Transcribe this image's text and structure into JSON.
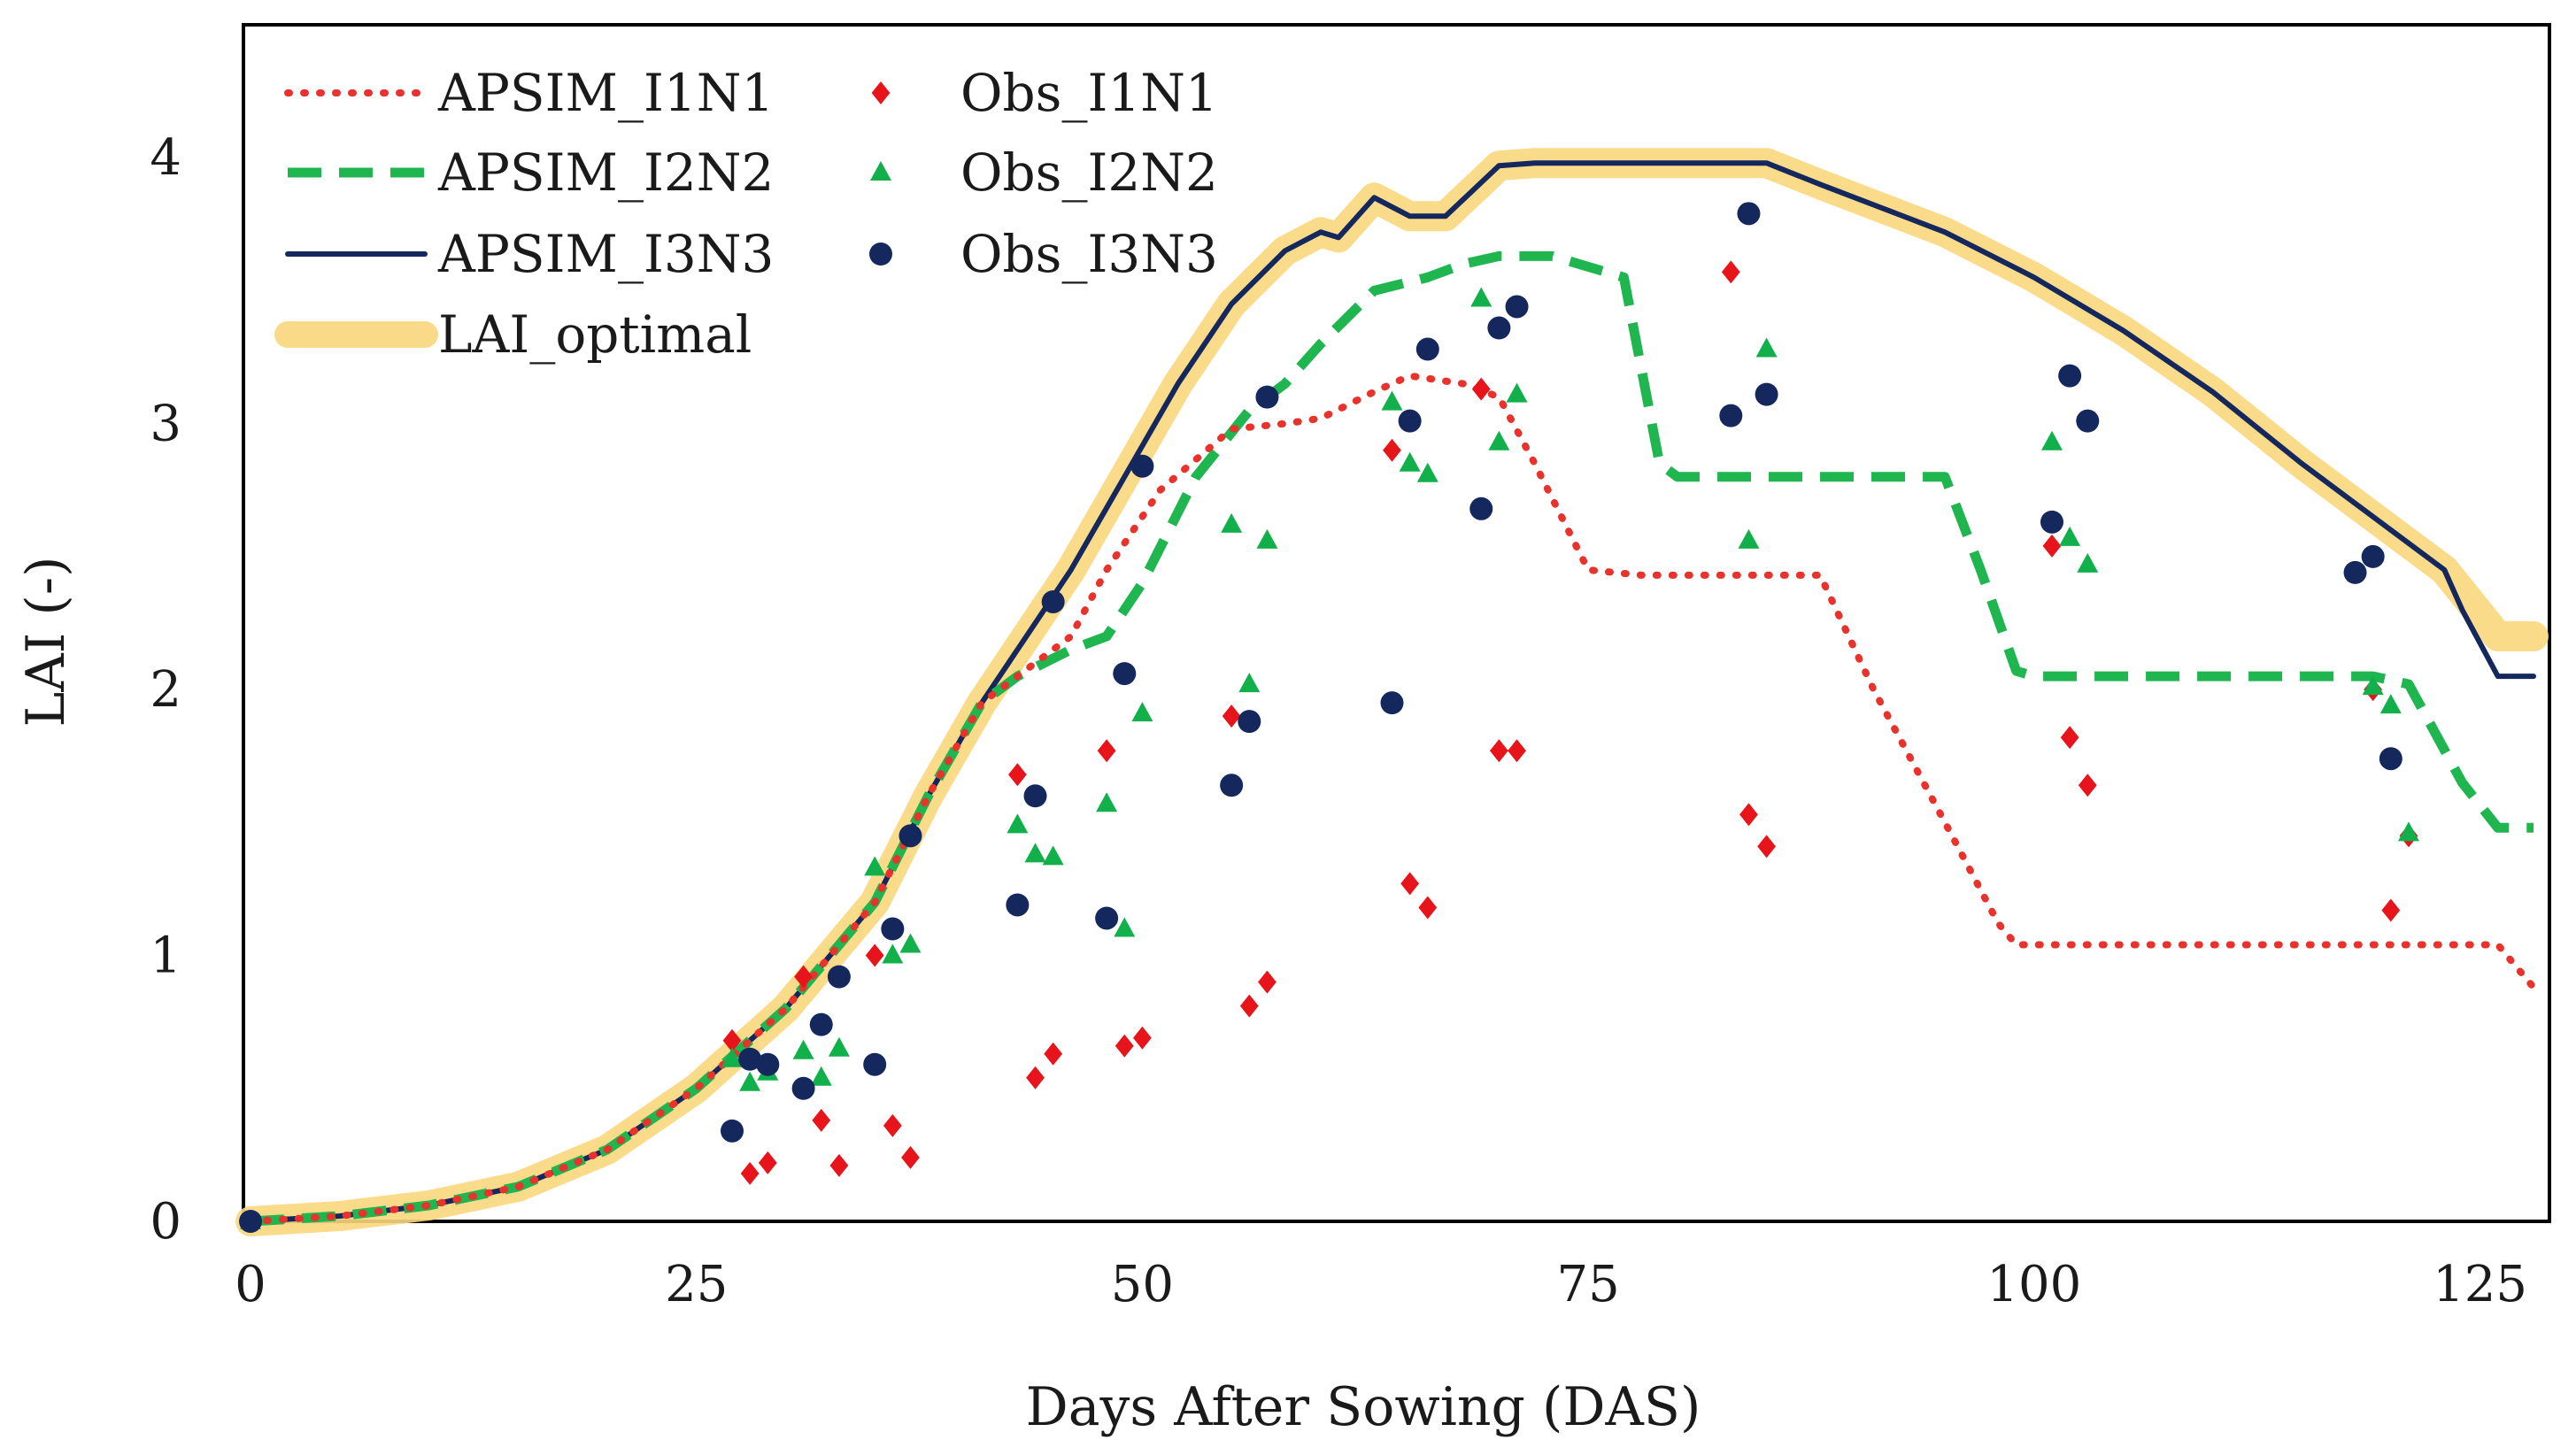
{
  "chart_data": {
    "type": "line",
    "title": "",
    "xlabel": "Days After Sowing (DAS)",
    "ylabel": "LAI (-)",
    "xlim": [
      0,
      128
    ],
    "ylim": [
      0,
      4.5
    ],
    "xticks": [
      0,
      25,
      50,
      75,
      100,
      125
    ],
    "yticks": [
      0,
      1,
      2,
      3,
      4
    ],
    "grid": false,
    "legend_position": "top-left",
    "series": [
      {
        "name": "APSIM_I1N1",
        "style": "dotted",
        "color": "#e8322b",
        "points": [
          [
            0,
            0
          ],
          [
            5,
            0.02
          ],
          [
            10,
            0.06
          ],
          [
            15,
            0.13
          ],
          [
            20,
            0.27
          ],
          [
            25,
            0.5
          ],
          [
            30,
            0.8
          ],
          [
            35,
            1.2
          ],
          [
            38,
            1.6
          ],
          [
            41,
            1.95
          ],
          [
            43,
            2.05
          ],
          [
            46,
            2.2
          ],
          [
            48,
            2.45
          ],
          [
            51,
            2.75
          ],
          [
            55,
            2.98
          ],
          [
            58,
            3.0
          ],
          [
            60,
            3.02
          ],
          [
            63,
            3.12
          ],
          [
            65,
            3.18
          ],
          [
            68,
            3.15
          ],
          [
            70,
            3.1
          ],
          [
            72,
            2.85
          ],
          [
            75,
            2.45
          ],
          [
            78,
            2.43
          ],
          [
            88,
            2.43
          ],
          [
            91,
            2.0
          ],
          [
            95,
            1.5
          ],
          [
            98,
            1.12
          ],
          [
            99,
            1.04
          ],
          [
            126,
            1.04
          ],
          [
            128,
            0.88
          ]
        ]
      },
      {
        "name": "APSIM_I2N2",
        "style": "dashed",
        "color": "#1fb54f",
        "points": [
          [
            0,
            0
          ],
          [
            5,
            0.02
          ],
          [
            10,
            0.06
          ],
          [
            15,
            0.13
          ],
          [
            20,
            0.27
          ],
          [
            25,
            0.5
          ],
          [
            30,
            0.8
          ],
          [
            35,
            1.2
          ],
          [
            38,
            1.6
          ],
          [
            41,
            1.95
          ],
          [
            43,
            2.05
          ],
          [
            46,
            2.15
          ],
          [
            48,
            2.2
          ],
          [
            50,
            2.4
          ],
          [
            53,
            2.8
          ],
          [
            56,
            3.05
          ],
          [
            58,
            3.15
          ],
          [
            60,
            3.3
          ],
          [
            63,
            3.5
          ],
          [
            66,
            3.55
          ],
          [
            68,
            3.6
          ],
          [
            70,
            3.63
          ],
          [
            73,
            3.63
          ],
          [
            77,
            3.55
          ],
          [
            79,
            2.85
          ],
          [
            80,
            2.8
          ],
          [
            95,
            2.8
          ],
          [
            97,
            2.45
          ],
          [
            99,
            2.07
          ],
          [
            100,
            2.05
          ],
          [
            119,
            2.05
          ],
          [
            121,
            2.02
          ],
          [
            124,
            1.65
          ],
          [
            126,
            1.48
          ],
          [
            128,
            1.48
          ]
        ]
      },
      {
        "name": "APSIM_I3N3",
        "style": "solid",
        "color": "#14285e",
        "points": [
          [
            0,
            0
          ],
          [
            5,
            0.02
          ],
          [
            10,
            0.06
          ],
          [
            15,
            0.13
          ],
          [
            20,
            0.27
          ],
          [
            25,
            0.5
          ],
          [
            30,
            0.8
          ],
          [
            35,
            1.2
          ],
          [
            38,
            1.6
          ],
          [
            41,
            1.95
          ],
          [
            43,
            2.15
          ],
          [
            46,
            2.45
          ],
          [
            49,
            2.8
          ],
          [
            52,
            3.15
          ],
          [
            55,
            3.45
          ],
          [
            58,
            3.65
          ],
          [
            60,
            3.72
          ],
          [
            61,
            3.7
          ],
          [
            63,
            3.85
          ],
          [
            65,
            3.78
          ],
          [
            67,
            3.78
          ],
          [
            70,
            3.97
          ],
          [
            72,
            3.98
          ],
          [
            85,
            3.98
          ],
          [
            88,
            3.9
          ],
          [
            95,
            3.72
          ],
          [
            100,
            3.55
          ],
          [
            105,
            3.35
          ],
          [
            110,
            3.12
          ],
          [
            115,
            2.85
          ],
          [
            120,
            2.6
          ],
          [
            123,
            2.45
          ],
          [
            124,
            2.3
          ],
          [
            126,
            2.05
          ],
          [
            128,
            2.05
          ]
        ]
      },
      {
        "name": "LAI_optimal",
        "style": "thick",
        "color": "#f8d77d",
        "points": [
          [
            0,
            0
          ],
          [
            5,
            0.02
          ],
          [
            10,
            0.06
          ],
          [
            15,
            0.13
          ],
          [
            20,
            0.27
          ],
          [
            25,
            0.5
          ],
          [
            30,
            0.8
          ],
          [
            35,
            1.2
          ],
          [
            38,
            1.6
          ],
          [
            41,
            1.95
          ],
          [
            43,
            2.15
          ],
          [
            46,
            2.45
          ],
          [
            49,
            2.8
          ],
          [
            52,
            3.15
          ],
          [
            55,
            3.45
          ],
          [
            58,
            3.65
          ],
          [
            60,
            3.72
          ],
          [
            61,
            3.7
          ],
          [
            63,
            3.85
          ],
          [
            65,
            3.78
          ],
          [
            67,
            3.78
          ],
          [
            70,
            3.97
          ],
          [
            72,
            3.98
          ],
          [
            85,
            3.98
          ],
          [
            88,
            3.9
          ],
          [
            95,
            3.72
          ],
          [
            100,
            3.55
          ],
          [
            105,
            3.35
          ],
          [
            110,
            3.12
          ],
          [
            115,
            2.85
          ],
          [
            120,
            2.6
          ],
          [
            123,
            2.45
          ],
          [
            126,
            2.2
          ],
          [
            128,
            2.2
          ]
        ]
      },
      {
        "name": "Obs_I1N1",
        "style": "marker-diamond",
        "color": "#e8141c",
        "points": [
          [
            0,
            0
          ],
          [
            27,
            0.68
          ],
          [
            28,
            0.18
          ],
          [
            29,
            0.22
          ],
          [
            31,
            0.92
          ],
          [
            32,
            0.38
          ],
          [
            33,
            0.21
          ],
          [
            35,
            1.0
          ],
          [
            36,
            0.36
          ],
          [
            37,
            0.24
          ],
          [
            43,
            1.68
          ],
          [
            44,
            0.54
          ],
          [
            45,
            0.63
          ],
          [
            48,
            1.77
          ],
          [
            49,
            0.66
          ],
          [
            50,
            0.69
          ],
          [
            55,
            1.9
          ],
          [
            56,
            0.81
          ],
          [
            57,
            0.9
          ],
          [
            64,
            2.9
          ],
          [
            65,
            1.27
          ],
          [
            66,
            1.18
          ],
          [
            69,
            3.13
          ],
          [
            70,
            1.77
          ],
          [
            71,
            1.77
          ],
          [
            83,
            3.57
          ],
          [
            84,
            1.53
          ],
          [
            85,
            1.41
          ],
          [
            101,
            2.54
          ],
          [
            102,
            1.82
          ],
          [
            103,
            1.64
          ],
          [
            119,
            2.0
          ],
          [
            120,
            1.17
          ],
          [
            121,
            1.45
          ]
        ]
      },
      {
        "name": "Obs_I2N2",
        "style": "marker-triangle",
        "color": "#12b04b",
        "points": [
          [
            0,
            0
          ],
          [
            27,
            0.61
          ],
          [
            28,
            0.52
          ],
          [
            29,
            0.56
          ],
          [
            31,
            0.64
          ],
          [
            32,
            0.54
          ],
          [
            33,
            0.65
          ],
          [
            35,
            1.33
          ],
          [
            36,
            1.0
          ],
          [
            37,
            1.04
          ],
          [
            43,
            1.49
          ],
          [
            44,
            1.38
          ],
          [
            45,
            1.37
          ],
          [
            48,
            1.57
          ],
          [
            49,
            1.1
          ],
          [
            50,
            1.91
          ],
          [
            55,
            2.62
          ],
          [
            56,
            2.02
          ],
          [
            57,
            2.56
          ],
          [
            64,
            3.08
          ],
          [
            65,
            2.85
          ],
          [
            66,
            2.81
          ],
          [
            69,
            3.47
          ],
          [
            70,
            2.93
          ],
          [
            71,
            3.11
          ],
          [
            84,
            2.56
          ],
          [
            85,
            3.28
          ],
          [
            101,
            2.93
          ],
          [
            102,
            2.57
          ],
          [
            103,
            2.47
          ],
          [
            119,
            2.01
          ],
          [
            120,
            1.94
          ],
          [
            121,
            1.46
          ]
        ]
      },
      {
        "name": "Obs_I3N3",
        "style": "marker-circle",
        "color": "#14285e",
        "points": [
          [
            0,
            0
          ],
          [
            27,
            0.34
          ],
          [
            28,
            0.61
          ],
          [
            29,
            0.59
          ],
          [
            31,
            0.5
          ],
          [
            32,
            0.74
          ],
          [
            33,
            0.92
          ],
          [
            35,
            0.59
          ],
          [
            36,
            1.1
          ],
          [
            37,
            1.45
          ],
          [
            43,
            1.19
          ],
          [
            44,
            1.6
          ],
          [
            45,
            2.33
          ],
          [
            48,
            1.14
          ],
          [
            49,
            2.06
          ],
          [
            50,
            2.84
          ],
          [
            55,
            1.64
          ],
          [
            56,
            1.88
          ],
          [
            57,
            3.1
          ],
          [
            64,
            1.95
          ],
          [
            65,
            3.01
          ],
          [
            66,
            3.28
          ],
          [
            69,
            2.68
          ],
          [
            70,
            3.36
          ],
          [
            71,
            3.44
          ],
          [
            83,
            3.03
          ],
          [
            84,
            3.79
          ],
          [
            85,
            3.11
          ],
          [
            101,
            2.63
          ],
          [
            102,
            3.18
          ],
          [
            103,
            3.01
          ],
          [
            118,
            2.44
          ],
          [
            119,
            2.5
          ],
          [
            120,
            1.74
          ]
        ]
      }
    ]
  }
}
